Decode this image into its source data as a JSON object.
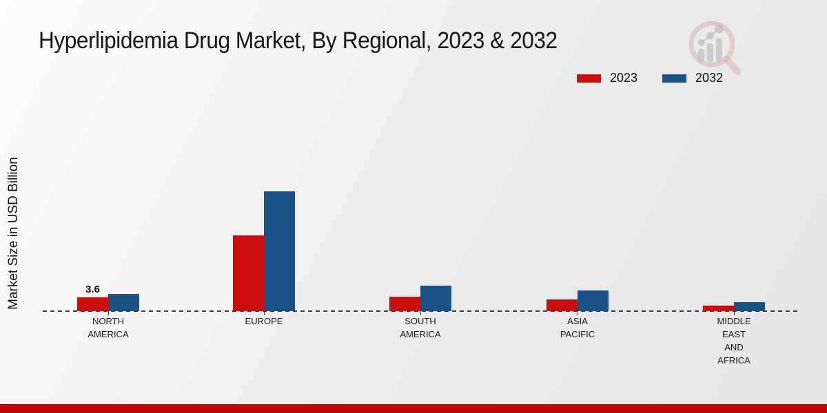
{
  "page": {
    "title": "Hyperlipidemia Drug Market, By Regional, 2023 & 2032",
    "y_axis_label": "Market Size in USD Billion"
  },
  "legend": {
    "position": "top-right",
    "items": [
      {
        "label": "2023",
        "color": "#cc0d0d"
      },
      {
        "label": "2032",
        "color": "#1a5286"
      }
    ]
  },
  "chart_data": {
    "type": "bar",
    "title": "Hyperlipidemia Drug Market, By Regional, 2023 & 2032",
    "xlabel": "",
    "ylabel": "Market Size in USD Billion",
    "unit": "USD Billion",
    "categories": [
      "North America",
      "Europe",
      "South America",
      "Asia Pacific",
      "Middle East and Africa"
    ],
    "category_display": [
      "NORTH\nAMERICA",
      "EUROPE",
      "SOUTH\nAMERICA",
      "ASIA\nPACIFIC",
      "MIDDLE\nEAST\nAND\nAFRICA"
    ],
    "series": [
      {
        "name": "2023",
        "color": "#cc0d0d",
        "values": [
          3.6,
          19.8,
          3.8,
          3.1,
          1.4
        ]
      },
      {
        "name": "2032",
        "color": "#1a5286",
        "values": [
          4.5,
          31.3,
          6.7,
          5.4,
          2.3
        ]
      }
    ],
    "data_labels": [
      {
        "series_index": 0,
        "category_index": 0,
        "text": "3.6"
      }
    ],
    "baseline_style": "dashed",
    "grid": false,
    "legend_position": "top-right"
  },
  "footer": {
    "strip_color": "#c20404"
  },
  "watermark": {
    "name": "magnifier-bar-chart-logo"
  }
}
